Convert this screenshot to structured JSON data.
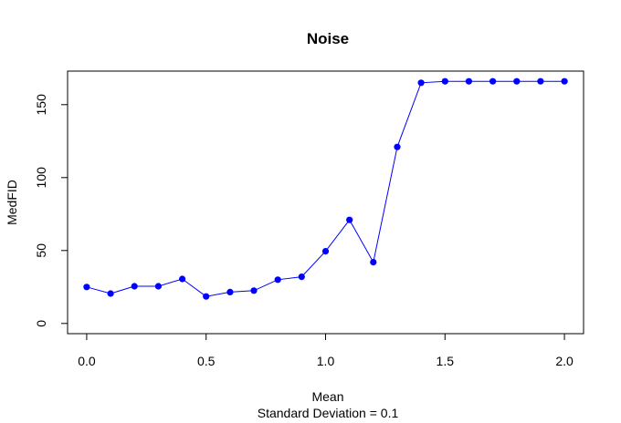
{
  "chart_data": {
    "type": "line",
    "title": "Noise",
    "xlabel": "Mean",
    "xlabel_sub": "Standard Deviation = 0.1",
    "ylabel": "MedFID",
    "xlim": [
      -0.08,
      2.08
    ],
    "ylim": [
      -7,
      173
    ],
    "x_ticks": [
      0.0,
      0.5,
      1.0,
      1.5,
      2.0
    ],
    "x_tick_labels": [
      "0.0",
      "0.5",
      "1.0",
      "1.5",
      "2.0"
    ],
    "y_ticks": [
      0,
      50,
      100,
      150
    ],
    "y_tick_labels": [
      "0",
      "50",
      "100",
      "150"
    ],
    "grid": false,
    "series": [
      {
        "color": "#0000ff",
        "marker": "filled-circle",
        "x": [
          0.0,
          0.1,
          0.2,
          0.3,
          0.4,
          0.5,
          0.6,
          0.7,
          0.8,
          0.9,
          1.0,
          1.1,
          1.2,
          1.3,
          1.4,
          1.5,
          1.6,
          1.7,
          1.8,
          1.9,
          2.0
        ],
        "values": [
          25,
          20.5,
          25.5,
          25.5,
          30.5,
          18.5,
          21.5,
          22.5,
          30,
          32,
          49.5,
          71,
          42,
          121,
          165,
          166,
          166,
          166,
          166,
          166,
          166
        ]
      }
    ]
  }
}
